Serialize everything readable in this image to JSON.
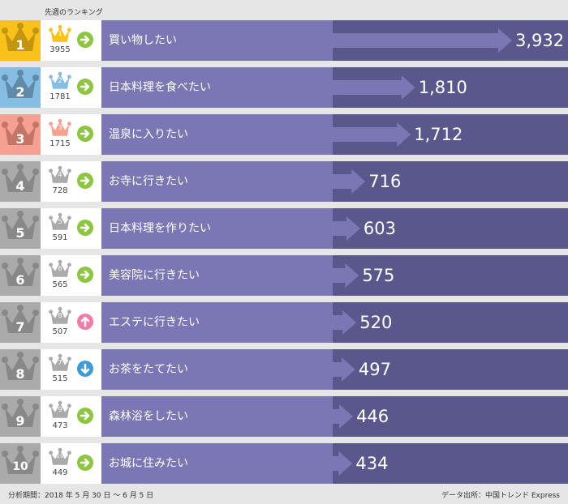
{
  "header": {
    "prev_week_label": "先週のランキング"
  },
  "footer": {
    "period": "分析期間：2018 年 5 月 30 日 ～ 6 月 5 日",
    "source": "データ出所：中国トレンド Express"
  },
  "colors": {
    "gold": "#f8c21a",
    "blue": "#85bde3",
    "salmon": "#f5a090",
    "gray": "#aaaaaa",
    "label_bg": "#7b77b4",
    "bar_bg": "#5a578c",
    "same": "#8cc63f",
    "up": "#f47aa8",
    "down": "#3e9bd6"
  },
  "rows": [
    {
      "rank": "1",
      "prev_rank": "1",
      "prev_value": "3955",
      "trend": "same",
      "value_label": "3,932"
    },
    {
      "rank": "2",
      "prev_rank": "2",
      "prev_value": "1781",
      "trend": "same",
      "value_label": "1,810"
    },
    {
      "rank": "3",
      "prev_rank": "3",
      "prev_value": "1715",
      "trend": "same",
      "value_label": "1,712"
    },
    {
      "rank": "4",
      "prev_rank": "4",
      "prev_value": "728",
      "trend": "same",
      "value_label": "716"
    },
    {
      "rank": "5",
      "prev_rank": "5",
      "prev_value": "591",
      "trend": "same",
      "value_label": "603"
    },
    {
      "rank": "6",
      "prev_rank": "6",
      "prev_value": "565",
      "trend": "same",
      "value_label": "575"
    },
    {
      "rank": "7",
      "prev_rank": "8",
      "prev_value": "507",
      "trend": "up",
      "value_label": "520"
    },
    {
      "rank": "8",
      "prev_rank": "7",
      "prev_value": "515",
      "trend": "down",
      "value_label": "497"
    },
    {
      "rank": "9",
      "prev_rank": "9",
      "prev_value": "473",
      "trend": "same",
      "value_label": "446"
    },
    {
      "rank": "10",
      "prev_rank": "10",
      "prev_value": "449",
      "trend": "same",
      "value_label": "434"
    }
  ],
  "chart_data": {
    "type": "bar",
    "orientation": "horizontal",
    "categories": [
      "買い物したい",
      "日本料理を食べたい",
      "温泉に入りたい",
      "お寺に行きたい",
      "日本料理を作りたい",
      "美容院に行きたい",
      "エステに行きたい",
      "お茶をたてたい",
      "森林浴をしたい",
      "お城に住みたい"
    ],
    "values": [
      3932,
      1810,
      1712,
      716,
      603,
      575,
      520,
      497,
      446,
      434
    ]
  }
}
